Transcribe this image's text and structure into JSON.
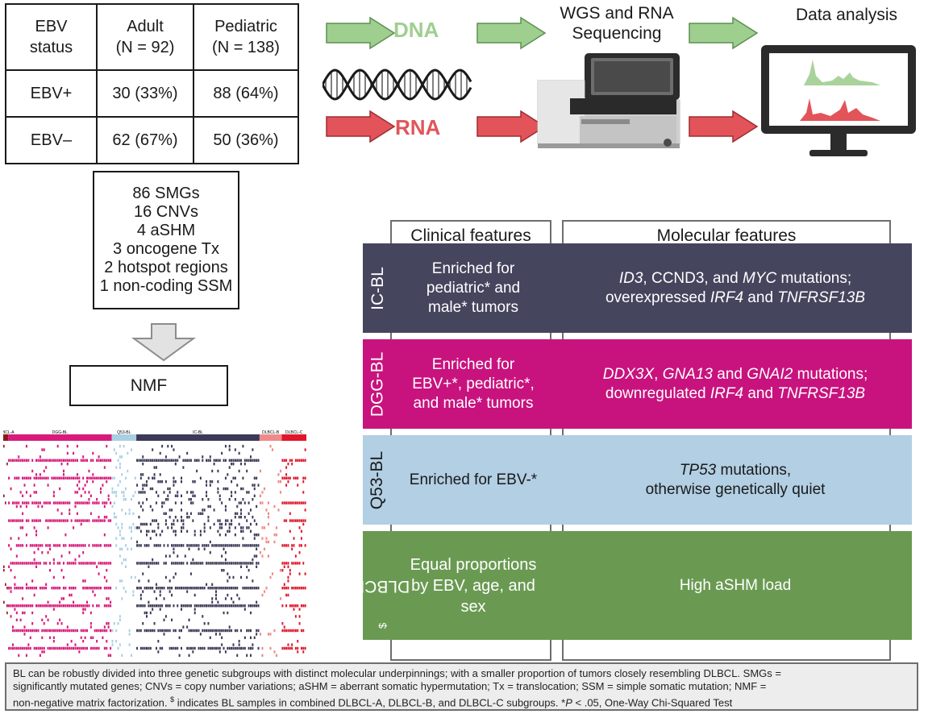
{
  "ebv_table": {
    "header": {
      "col1": [
        "EBV",
        "status"
      ],
      "col2": [
        "Adult",
        "(N = 92)"
      ],
      "col3": [
        "Pediatric",
        "(N = 138)"
      ]
    },
    "rows": [
      {
        "status": "EBV+",
        "adult": "30 (33%)",
        "pediatric": "88 (64%)"
      },
      {
        "status": "EBV–",
        "adult": "62 (67%)",
        "pediatric": "50 (36%)"
      }
    ]
  },
  "features": [
    "86 SMGs",
    "16 CNVs",
    "4 aSHM",
    "3 oncogene Tx",
    "2 hotspot regions",
    "1 non-coding SSM"
  ],
  "nmf": "NMF",
  "pipeline": {
    "dna": "DNA",
    "rna": "RNA",
    "sequencing": [
      "WGS and RNA",
      "Sequencing"
    ],
    "analysis": "Data analysis"
  },
  "heatmap": {
    "groups": [
      {
        "label": "DLBCL-A",
        "color": "#8b1a1a",
        "weight": 2
      },
      {
        "label": "DGG-BL",
        "color": "#d81b7a",
        "weight": 42
      },
      {
        "label": "Q53-BL",
        "color": "#a9cfe3",
        "weight": 10
      },
      {
        "label": "IC-BL",
        "color": "#3c3a57",
        "weight": 50
      },
      {
        "label": "DLBCL-B",
        "color": "#f08a8a",
        "weight": 9
      },
      {
        "label": "DLBCL-C",
        "color": "#e0162b",
        "weight": 10
      }
    ]
  },
  "subgroups": {
    "clinical_header": "Clinical features",
    "molecular_header": "Molecular features",
    "rows": [
      {
        "tag": "IC-BL",
        "color": "#46455e",
        "clinical": [
          "Enriched for",
          "pediatric* and",
          "male* tumors"
        ],
        "mol1": {
          "a": "ID3",
          "b": ", CCND3, and ",
          "c": "MYC",
          "d": " mutations;"
        },
        "mol2": {
          "a": "overexpressed ",
          "b": "IRF4",
          "c": " and ",
          "d": "TNFRSF13B"
        }
      },
      {
        "tag": "DGG-BL",
        "color": "#c8137e",
        "clinical": [
          "Enriched for",
          "EBV+*, pediatric*,",
          "and male* tumors"
        ],
        "mol1": {
          "a": "DDX3X",
          "b": ", ",
          "c": "GNA13",
          "d": " and ",
          "e": "GNAI2",
          "f": " mutations;"
        },
        "mol2": {
          "a": "downregulated ",
          "b": "IRF4",
          "c": " and ",
          "d": "TNFRSF13B"
        }
      },
      {
        "tag": "Q53-BL",
        "color": "#b2cfe3",
        "clinical": [
          "Enriched for EBV-*"
        ],
        "mol1": {
          "a": "TP53",
          "b": " mutations,"
        },
        "mol2": {
          "a": "otherwise genetically quiet"
        }
      },
      {
        "tag": "DLBCL-like",
        "tag_sup": "$",
        "color": "#6a9a52",
        "clinical": [
          "Equal proportions",
          "by EBV, age, and",
          "sex"
        ],
        "mol1": {
          "a": "High aSHM load"
        }
      }
    ]
  },
  "footnote": {
    "line1": "BL can be robustly divided into three genetic subgroups with distinct molecular underpinnings; with a smaller proportion of tumors closely resembling DLBCL. SMGs =",
    "line2": "significantly mutated genes; CNVs = copy number variations; aSHM = aberrant somatic hypermutation; Tx = translocation; SSM = simple somatic mutation; NMF =",
    "line3a": "non-negative matrix factorization. ",
    "line3sup": "$",
    "line3b": " indicates BL samples in combined DLBCL-A, DLBCL-B, and DLBCL-C subgroups. *",
    "line3p": "P",
    "line3c": " < .05, One-Way Chi-Squared Test"
  },
  "colors": {
    "dna_arrow": "#9fcf8f",
    "rna_arrow": "#e2545a",
    "dna_text": "#9fcf8f",
    "rna_text": "#e2545a"
  }
}
